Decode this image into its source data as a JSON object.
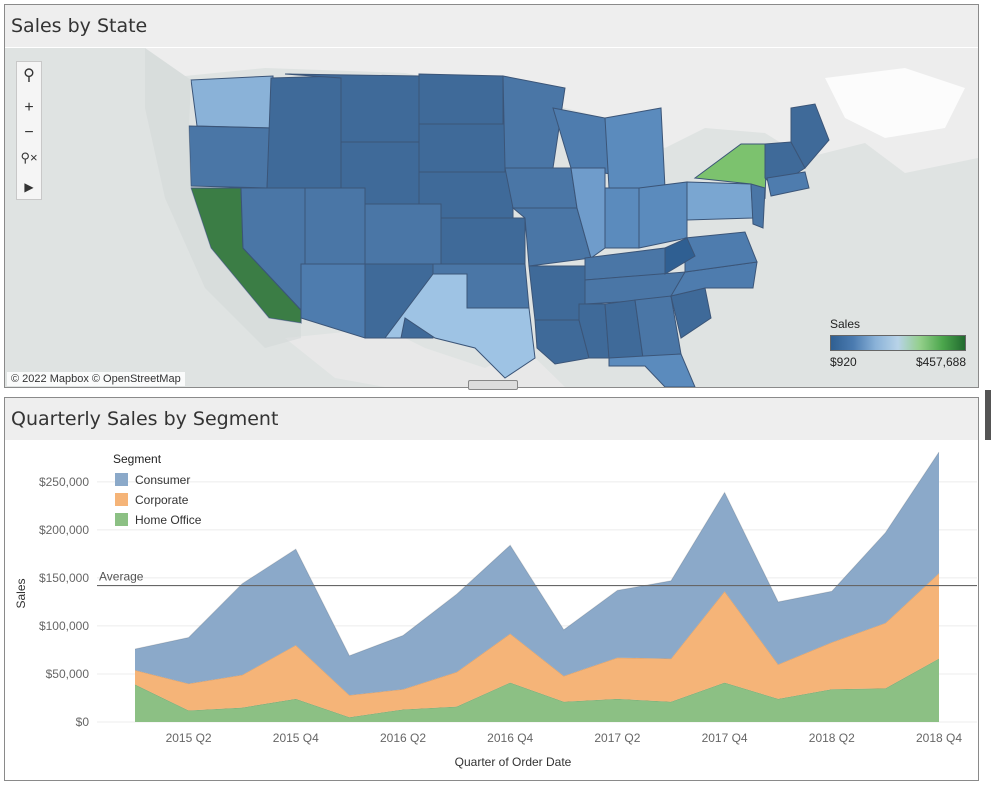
{
  "map_panel": {
    "title": "Sales by State",
    "attribution": "© 2022 Mapbox © OpenStreetMap",
    "legend": {
      "title": "Sales",
      "min_label": "$920",
      "max_label": "$457,688",
      "low_color": "#2f5f92",
      "high_color": "#216a2f"
    },
    "toolbar": [
      "search-icon",
      "zoom-in-icon",
      "zoom-out-icon",
      "pin-reset-icon",
      "expand-arrow-icon"
    ]
  },
  "segment_panel": {
    "title": "Quarterly Sales by Segment"
  },
  "chart_data": {
    "type": "area",
    "stacked": true,
    "x_categories": [
      "2015 Q1",
      "2015 Q2",
      "2015 Q3",
      "2015 Q4",
      "2016 Q1",
      "2016 Q2",
      "2016 Q3",
      "2016 Q4",
      "2017 Q1",
      "2017 Q2",
      "2017 Q3",
      "2017 Q4",
      "2018 Q1",
      "2018 Q2",
      "2018 Q3",
      "2018 Q4"
    ],
    "x_tick_labels": [
      "2015 Q2",
      "2015 Q4",
      "2016 Q2",
      "2016 Q4",
      "2017 Q2",
      "2017 Q4",
      "2018 Q2",
      "2018 Q4"
    ],
    "xlabel": "Quarter of Order Date",
    "ylabel": "Sales",
    "ylim": [
      0,
      280000
    ],
    "y_ticks": [
      0,
      50000,
      100000,
      150000,
      200000,
      250000
    ],
    "y_tick_labels": [
      "$0",
      "$50,000",
      "$100,000",
      "$150,000",
      "$200,000",
      "$250,000"
    ],
    "legend": {
      "title": "Segment",
      "placement": "top-left"
    },
    "reference_line": {
      "label": "Average",
      "value": 142000
    },
    "series": [
      {
        "name": "Home Office",
        "color": "#8cc084",
        "values": [
          39000,
          12000,
          15000,
          24000,
          5000,
          13000,
          16000,
          41000,
          21000,
          24000,
          21000,
          41000,
          24000,
          34000,
          35000,
          66000
        ]
      },
      {
        "name": "Corporate",
        "color": "#f5b478",
        "values": [
          15000,
          28000,
          34000,
          56000,
          23000,
          21000,
          36000,
          51000,
          27000,
          43000,
          45000,
          95000,
          36000,
          49000,
          68000,
          89000
        ]
      },
      {
        "name": "Consumer",
        "color": "#8ba9c9",
        "values": [
          22000,
          48000,
          95000,
          100000,
          41000,
          56000,
          81000,
          92000,
          48000,
          70000,
          81000,
          103000,
          65000,
          53000,
          94000,
          126000
        ]
      }
    ],
    "legend_order": [
      "Consumer",
      "Corporate",
      "Home Office"
    ]
  }
}
